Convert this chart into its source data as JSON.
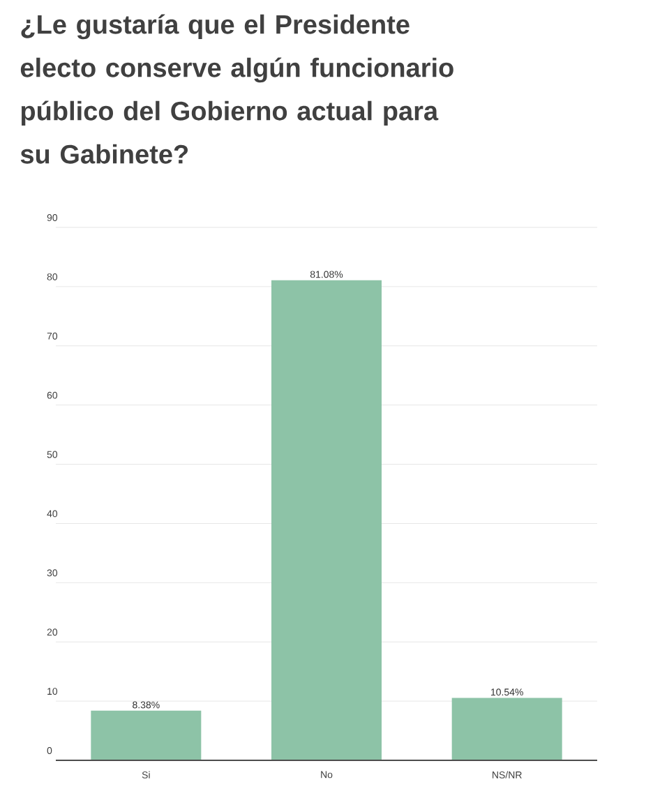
{
  "chart_data": {
    "type": "bar",
    "title": "¿Le gustaría que el Presidente electo conserve algún funcionario público del Gobierno actual para su Gabinete?",
    "categories": [
      "Si",
      "No",
      "NS/NR"
    ],
    "values": [
      8.38,
      81.08,
      10.54
    ],
    "value_labels": [
      "8.38%",
      "81.08%",
      "10.54%"
    ],
    "color": "#8dc3a7",
    "ylim": [
      0,
      90
    ],
    "yticks": [
      0,
      10,
      20,
      30,
      40,
      50,
      60,
      70,
      80,
      90
    ],
    "grid": "y"
  }
}
